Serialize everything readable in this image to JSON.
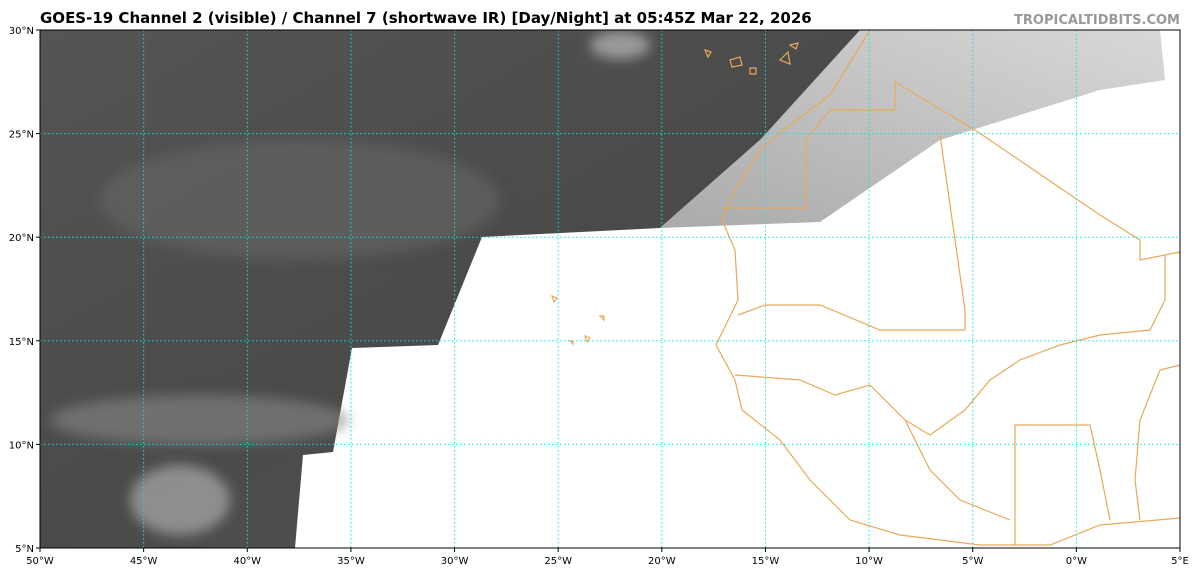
{
  "header": {
    "title": "GOES-19 Channel 2 (visible) / Channel 7 (shortwave IR) [Day/Night] at 05:45Z Mar 22, 2026",
    "site": "TROPICALTIDBITS.COM"
  },
  "map": {
    "lon_range": [
      -50,
      5
    ],
    "lat_range": [
      5,
      30
    ],
    "lat_ticks": [
      {
        "value": 30,
        "label": "30°N"
      },
      {
        "value": 25,
        "label": "25°N"
      },
      {
        "value": 20,
        "label": "20°N"
      },
      {
        "value": 15,
        "label": "15°N"
      },
      {
        "value": 10,
        "label": "10°N"
      },
      {
        "value": 5,
        "label": "5°N"
      }
    ],
    "lon_ticks": [
      {
        "value": -50,
        "label": "50°W"
      },
      {
        "value": -45,
        "label": "45°W"
      },
      {
        "value": -40,
        "label": "40°W"
      },
      {
        "value": -35,
        "label": "35°W"
      },
      {
        "value": -30,
        "label": "30°W"
      },
      {
        "value": -25,
        "label": "25°W"
      },
      {
        "value": -20,
        "label": "20°W"
      },
      {
        "value": -15,
        "label": "15°W"
      },
      {
        "value": -10,
        "label": "10°W"
      },
      {
        "value": -5,
        "label": "5°W"
      },
      {
        "value": 0,
        "label": "0°W"
      },
      {
        "value": 5,
        "label": "5°E"
      }
    ]
  }
}
